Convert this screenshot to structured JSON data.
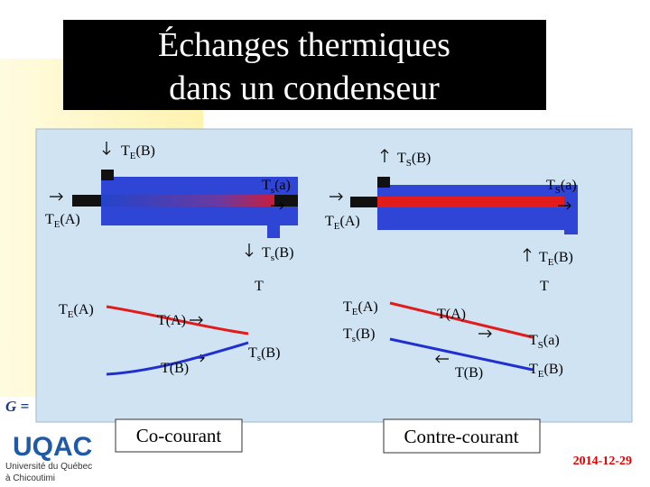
{
  "header": {
    "title_lines": [
      "Échanges thermiques",
      "dans un condenseur"
    ]
  },
  "diagram": {
    "labels": [
      {
        "text": "T",
        "sub": "E",
        "suffix": "(B)"
      },
      {
        "text": "T",
        "sub": "S",
        "suffix": "(B)"
      },
      {
        "text": "T",
        "sub": "s",
        "suffix": "(a)"
      },
      {
        "text": "T",
        "sub": "S",
        "suffix": "(a)"
      },
      {
        "text": "T",
        "sub": "E",
        "suffix": "(A)"
      },
      {
        "text": "T",
        "sub": "E",
        "suffix": "(A)"
      },
      {
        "text": "T",
        "sub": "s",
        "suffix": "(B)"
      },
      {
        "text": "T",
        "sub": "E",
        "suffix": "(B)"
      },
      {
        "text": "T"
      },
      {
        "text": "T"
      },
      {
        "text": "T",
        "sub": "E",
        "suffix": "(A)"
      },
      {
        "text": "T(A)"
      },
      {
        "text": "T(B)"
      },
      {
        "text": "T",
        "sub": "s",
        "suffix": "(B)"
      },
      {
        "text": "T",
        "sub": "E",
        "suffix": "(A)"
      },
      {
        "text": "T",
        "sub": "s",
        "suffix": "(B)"
      },
      {
        "text": "T(A)"
      },
      {
        "text": "T(B)"
      },
      {
        "text": "T",
        "sub": "S",
        "suffix": "(a)"
      },
      {
        "text": "T",
        "sub": "E",
        "suffix": "(B)"
      }
    ]
  },
  "captions": [
    "Co-courant",
    "Contre-courant"
  ],
  "footer": {
    "logo": "UQAC",
    "institution_lines": [
      "Université du Québec",
      "à Chicoutimi"
    ],
    "formula": "G =",
    "date": "2014-12-29"
  }
}
